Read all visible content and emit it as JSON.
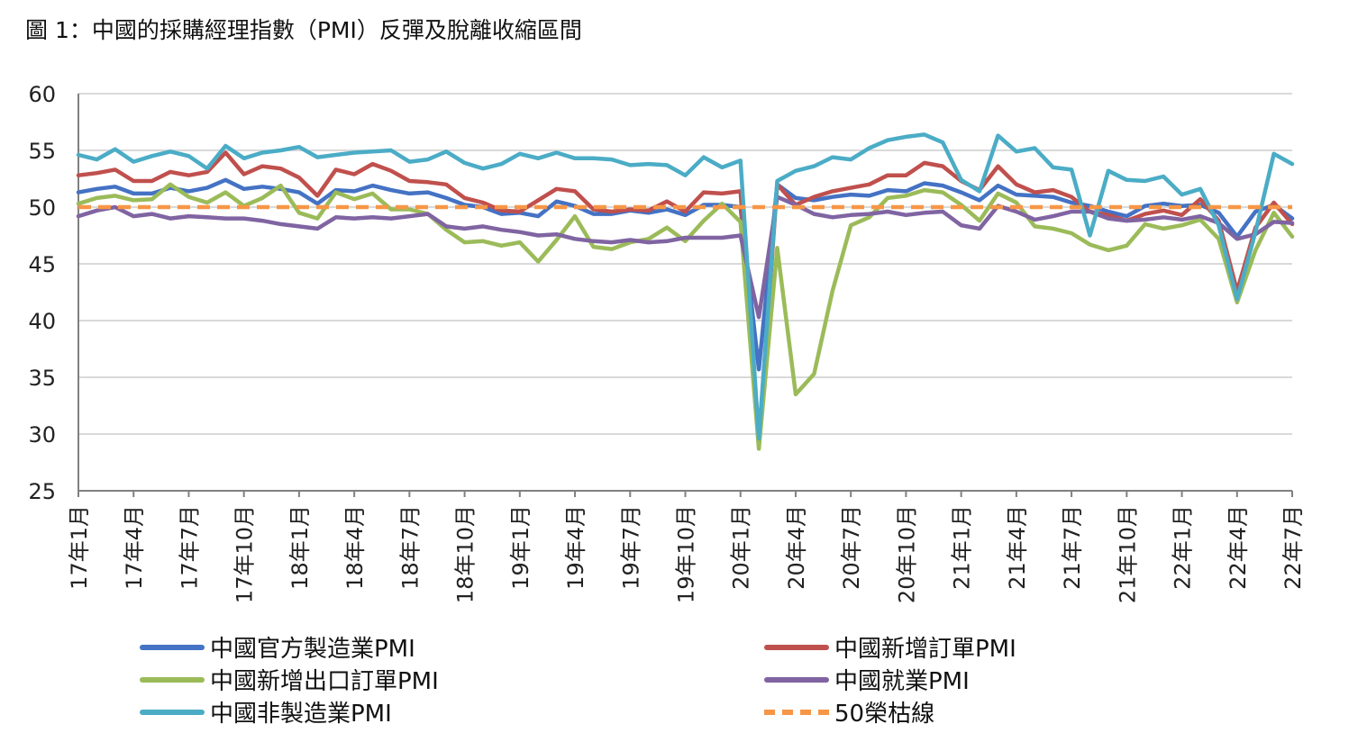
{
  "title": "圖 1：中國的採購經理指數（PMI）反彈及脫離收縮區間",
  "chart_data": {
    "type": "line",
    "title": "圖 1：中國的採購經理指數（PMI）反彈及脫離收縮區間",
    "xlabel": "",
    "ylabel": "",
    "ylim": [
      25,
      60
    ],
    "yticks": [
      "60",
      "55",
      "50",
      "45",
      "40",
      "35",
      "30",
      "25"
    ],
    "grid": true,
    "legend_position": "bottom",
    "categories": [
      "17年1月",
      "17年2月",
      "17年3月",
      "17年4月",
      "17年5月",
      "17年6月",
      "17年7月",
      "17年8月",
      "17年9月",
      "17年10月",
      "17年11月",
      "17年12月",
      "18年1月",
      "18年2月",
      "18年3月",
      "18年4月",
      "18年5月",
      "18年6月",
      "18年7月",
      "18年8月",
      "18年9月",
      "18年10月",
      "18年11月",
      "18年12月",
      "19年1月",
      "19年2月",
      "19年3月",
      "19年4月",
      "19年5月",
      "19年6月",
      "19年7月",
      "19年8月",
      "19年9月",
      "19年10月",
      "19年11月",
      "19年12月",
      "20年1月",
      "20年2月",
      "20年3月",
      "20年4月",
      "20年5月",
      "20年6月",
      "20年7月",
      "20年8月",
      "20年9月",
      "20年10月",
      "20年11月",
      "20年12月",
      "21年1月",
      "21年2月",
      "21年3月",
      "21年4月",
      "21年5月",
      "21年6月",
      "21年7月",
      "21年8月",
      "21年9月",
      "21年10月",
      "21年11月",
      "21年12月",
      "22年1月",
      "22年2月",
      "22年3月",
      "22年4月",
      "22年5月",
      "22年6月",
      "22年7月"
    ],
    "tick_labels": [
      "17年1月",
      "17年4月",
      "17年7月",
      "17年10月",
      "18年1月",
      "18年4月",
      "18年7月",
      "18年10月",
      "19年1月",
      "19年4月",
      "19年7月",
      "19年10月",
      "20年1月",
      "20年4月",
      "20年7月",
      "20年10月",
      "21年1月",
      "21年4月",
      "21年7月",
      "21年10月",
      "22年1月",
      "22年4月",
      "22年7月"
    ],
    "series": [
      {
        "name": "中國官方製造業PMI",
        "color": "#4472C4",
        "values": [
          51.3,
          51.6,
          51.8,
          51.2,
          51.2,
          51.7,
          51.4,
          51.7,
          52.4,
          51.6,
          51.8,
          51.6,
          51.3,
          50.3,
          51.5,
          51.4,
          51.9,
          51.5,
          51.2,
          51.3,
          50.8,
          50.2,
          50.0,
          49.4,
          49.5,
          49.2,
          50.5,
          50.1,
          49.4,
          49.4,
          49.7,
          49.5,
          49.8,
          49.3,
          50.2,
          50.2,
          50.0,
          35.7,
          52.0,
          50.8,
          50.6,
          50.9,
          51.1,
          51.0,
          51.5,
          51.4,
          52.1,
          51.9,
          51.3,
          50.6,
          51.9,
          51.1,
          51.0,
          50.9,
          50.4,
          50.1,
          49.6,
          49.2,
          50.1,
          50.3,
          50.1,
          50.2,
          49.5,
          47.4,
          49.6,
          50.2,
          49.0
        ]
      },
      {
        "name": "中國新增訂單PMI",
        "color": "#C0504D",
        "values": [
          52.8,
          53.0,
          53.3,
          52.3,
          52.3,
          53.1,
          52.8,
          53.1,
          54.8,
          52.9,
          53.6,
          53.4,
          52.6,
          51.0,
          53.3,
          52.9,
          53.8,
          53.2,
          52.3,
          52.2,
          52.0,
          50.8,
          50.4,
          49.7,
          49.6,
          50.6,
          51.6,
          51.4,
          49.8,
          49.6,
          49.8,
          49.7,
          50.5,
          49.6,
          51.3,
          51.2,
          51.4,
          29.3,
          52.0,
          50.2,
          50.9,
          51.4,
          51.7,
          52.0,
          52.8,
          52.8,
          53.9,
          53.6,
          52.3,
          51.5,
          53.6,
          52.0,
          51.3,
          51.5,
          50.9,
          49.6,
          49.3,
          48.8,
          49.4,
          49.7,
          49.3,
          50.7,
          48.8,
          42.6,
          48.2,
          50.4,
          48.5
        ]
      },
      {
        "name": "中國新增出口訂單PMI",
        "color": "#9BBB59",
        "values": [
          50.3,
          50.8,
          51.0,
          50.6,
          50.7,
          52.0,
          50.9,
          50.4,
          51.3,
          50.1,
          50.8,
          51.9,
          49.5,
          49.0,
          51.3,
          50.7,
          51.2,
          49.8,
          49.8,
          49.4,
          48.0,
          46.9,
          47.0,
          46.6,
          46.9,
          45.2,
          47.1,
          49.2,
          46.5,
          46.3,
          46.9,
          47.2,
          48.2,
          47.0,
          48.8,
          50.3,
          48.7,
          28.7,
          46.4,
          33.5,
          35.3,
          42.6,
          48.4,
          49.1,
          50.8,
          51.0,
          51.5,
          51.3,
          50.2,
          48.8,
          51.2,
          50.4,
          48.3,
          48.1,
          47.7,
          46.7,
          46.2,
          46.6,
          48.5,
          48.1,
          48.4,
          48.9,
          47.2,
          41.6,
          46.2,
          49.5,
          47.4
        ]
      },
      {
        "name": "中國就業PMI",
        "color": "#8064A2",
        "values": [
          49.2,
          49.7,
          50.0,
          49.2,
          49.4,
          49.0,
          49.2,
          49.1,
          49.0,
          49.0,
          48.8,
          48.5,
          48.3,
          48.1,
          49.1,
          49.0,
          49.1,
          49.0,
          49.2,
          49.4,
          48.3,
          48.1,
          48.3,
          48.0,
          47.8,
          47.5,
          47.6,
          47.2,
          47.0,
          46.9,
          47.1,
          46.9,
          47.0,
          47.3,
          47.3,
          47.3,
          47.5,
          40.3,
          50.9,
          50.2,
          49.4,
          49.1,
          49.3,
          49.4,
          49.6,
          49.3,
          49.5,
          49.6,
          48.4,
          48.1,
          50.1,
          49.6,
          48.9,
          49.2,
          49.6,
          49.6,
          49.0,
          48.8,
          48.9,
          49.1,
          48.9,
          49.2,
          48.6,
          47.2,
          47.6,
          48.7,
          48.6
        ]
      },
      {
        "name": "中國非製造業PMI",
        "color": "#4BACC6",
        "values": [
          54.6,
          54.2,
          55.1,
          54.0,
          54.5,
          54.9,
          54.5,
          53.4,
          55.4,
          54.3,
          54.8,
          55.0,
          55.3,
          54.4,
          54.6,
          54.8,
          54.9,
          55.0,
          54.0,
          54.2,
          54.9,
          53.9,
          53.4,
          53.8,
          54.7,
          54.3,
          54.8,
          54.3,
          54.3,
          54.2,
          53.7,
          53.8,
          53.7,
          52.8,
          54.4,
          53.5,
          54.1,
          29.6,
          52.3,
          53.2,
          53.6,
          54.4,
          54.2,
          55.2,
          55.9,
          56.2,
          56.4,
          55.7,
          52.4,
          51.4,
          56.3,
          54.9,
          55.2,
          53.5,
          53.3,
          47.5,
          53.2,
          52.4,
          52.3,
          52.7,
          51.1,
          51.6,
          48.4,
          41.9,
          47.8,
          54.7,
          53.8
        ]
      },
      {
        "name": "50榮枯線",
        "color": "#F79646",
        "dashed": true,
        "values": [
          50,
          50,
          50,
          50,
          50,
          50,
          50,
          50,
          50,
          50,
          50,
          50,
          50,
          50,
          50,
          50,
          50,
          50,
          50,
          50,
          50,
          50,
          50,
          50,
          50,
          50,
          50,
          50,
          50,
          50,
          50,
          50,
          50,
          50,
          50,
          50,
          50,
          50,
          50,
          50,
          50,
          50,
          50,
          50,
          50,
          50,
          50,
          50,
          50,
          50,
          50,
          50,
          50,
          50,
          50,
          50,
          50,
          50,
          50,
          50,
          50,
          50,
          50,
          50,
          50,
          50,
          50
        ]
      }
    ]
  }
}
